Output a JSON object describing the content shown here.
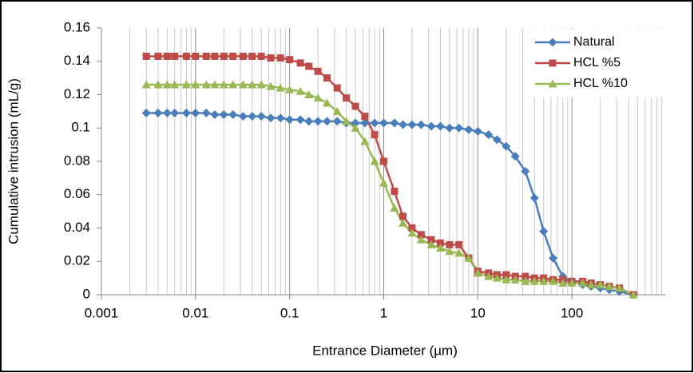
{
  "chart_data": {
    "type": "line",
    "xlabel": "Entrance Diameter (µm)",
    "ylabel": "Cumulative intrusion (mL/g)",
    "x": [
      0.003,
      0.004,
      0.005,
      0.006,
      0.008,
      0.01,
      0.013,
      0.016,
      0.02,
      0.025,
      0.032,
      0.04,
      0.05,
      0.063,
      0.08,
      0.1,
      0.13,
      0.16,
      0.2,
      0.25,
      0.32,
      0.4,
      0.5,
      0.63,
      0.8,
      1,
      1.3,
      1.6,
      2,
      2.5,
      3.2,
      4,
      5,
      6.3,
      8,
      10,
      13,
      16,
      20,
      25,
      32,
      40,
      50,
      63,
      80,
      100,
      130,
      160,
      200,
      250,
      320,
      450
    ],
    "series": [
      {
        "name": "Natural",
        "color": "#4a7ebb",
        "marker": "diamond",
        "values": [
          0.109,
          0.109,
          0.109,
          0.109,
          0.109,
          0.109,
          0.109,
          0.108,
          0.108,
          0.108,
          0.107,
          0.107,
          0.107,
          0.106,
          0.106,
          0.105,
          0.105,
          0.104,
          0.104,
          0.104,
          0.104,
          0.103,
          0.103,
          0.103,
          0.103,
          0.103,
          0.103,
          0.102,
          0.102,
          0.102,
          0.101,
          0.101,
          0.1,
          0.1,
          0.099,
          0.098,
          0.096,
          0.093,
          0.089,
          0.083,
          0.074,
          0.058,
          0.038,
          0.022,
          0.011,
          0.008,
          0.006,
          0.005,
          0.004,
          0.003,
          0.002,
          0
        ]
      },
      {
        "name": "HCL %5",
        "color": "#be4b48",
        "marker": "square",
        "values": [
          0.143,
          0.143,
          0.143,
          0.143,
          0.143,
          0.143,
          0.143,
          0.143,
          0.143,
          0.143,
          0.143,
          0.143,
          0.143,
          0.142,
          0.142,
          0.141,
          0.139,
          0.137,
          0.134,
          0.13,
          0.124,
          0.118,
          0.113,
          0.107,
          0.096,
          0.08,
          0.062,
          0.047,
          0.04,
          0.036,
          0.033,
          0.031,
          0.03,
          0.03,
          0.022,
          0.014,
          0.013,
          0.012,
          0.012,
          0.011,
          0.011,
          0.01,
          0.01,
          0.009,
          0.009,
          0.008,
          0.008,
          0.007,
          0.006,
          0.005,
          0.004,
          0
        ]
      },
      {
        "name": "HCL %10",
        "color": "#98b954",
        "marker": "triangle",
        "values": [
          0.126,
          0.126,
          0.126,
          0.126,
          0.126,
          0.126,
          0.126,
          0.126,
          0.126,
          0.126,
          0.126,
          0.126,
          0.126,
          0.125,
          0.124,
          0.123,
          0.122,
          0.12,
          0.118,
          0.115,
          0.11,
          0.104,
          0.1,
          0.092,
          0.08,
          0.067,
          0.052,
          0.043,
          0.037,
          0.033,
          0.03,
          0.028,
          0.026,
          0.025,
          0.022,
          0.013,
          0.011,
          0.01,
          0.009,
          0.009,
          0.008,
          0.008,
          0.008,
          0.008,
          0.007,
          0.007,
          0.007,
          0.006,
          0.006,
          0.005,
          0.004,
          0
        ]
      }
    ],
    "xscale": "log",
    "xlim": [
      0.001,
      1000
    ],
    "xticks": [
      0.001,
      0.01,
      0.1,
      1,
      10,
      100
    ],
    "ylim": [
      0,
      0.16
    ],
    "yticks": [
      0,
      0.02,
      0.04,
      0.06,
      0.08,
      0.1,
      0.12,
      0.14,
      0.16
    ],
    "grid": "x-minor",
    "legend": "upper right"
  }
}
